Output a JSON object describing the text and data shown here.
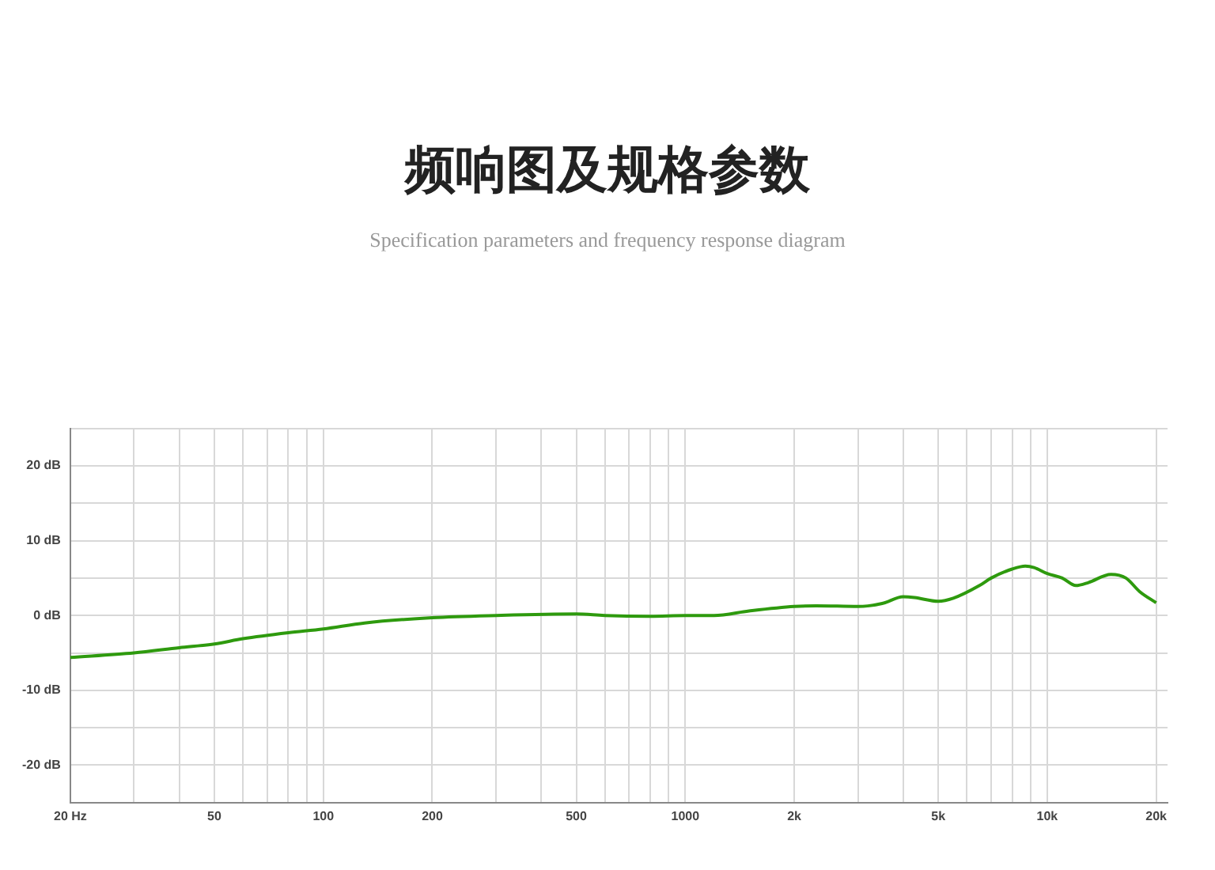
{
  "chart_data": {
    "type": "line",
    "title": "频响图及规格参数",
    "subtitle": "Specification parameters and frequency response diagram",
    "x": [
      20,
      30,
      40,
      50,
      60,
      80,
      100,
      130,
      200,
      300,
      500,
      600,
      800,
      1000,
      1200,
      1500,
      2000,
      2300,
      3000,
      3500,
      4000,
      4300,
      5000,
      5500,
      6500,
      7000,
      8000,
      8700,
      9200,
      10000,
      11000,
      12000,
      13000,
      15000,
      16500,
      18000,
      20000
    ],
    "series": [
      {
        "color": "#2e9a0e",
        "values": [
          -5.6,
          -5.0,
          -4.3,
          -3.8,
          -3.1,
          -2.3,
          -1.8,
          -1.0,
          -0.3,
          0,
          0.2,
          0,
          -0.1,
          0,
          0,
          0.6,
          1.2,
          1.3,
          1.2,
          1.6,
          2.5,
          2.4,
          1.9,
          2.3,
          4.0,
          5.0,
          6.2,
          6.6,
          6.4,
          5.6,
          5.0,
          4.0,
          4.4,
          5.5,
          5.0,
          3.2,
          1.7
        ]
      }
    ],
    "log": "x",
    "xlim": [
      20,
      21500
    ],
    "xticks": [
      {
        "value": 20,
        "label": "20 Hz"
      },
      {
        "value": 30,
        "label": null
      },
      {
        "value": 40,
        "label": null
      },
      50,
      {
        "value": 60,
        "label": null
      },
      {
        "value": 70,
        "label": null
      },
      {
        "value": 80,
        "label": null
      },
      {
        "value": 90,
        "label": null
      },
      100,
      200,
      {
        "value": 300,
        "label": null
      },
      {
        "value": 400,
        "label": null
      },
      500,
      {
        "value": 600,
        "label": null
      },
      {
        "value": 700,
        "label": null
      },
      {
        "value": 800,
        "label": null
      },
      {
        "value": 900,
        "label": null
      },
      1000,
      {
        "value": 2000,
        "label": "2k"
      },
      {
        "value": 3000,
        "label": null
      },
      {
        "value": 4000,
        "label": null
      },
      {
        "value": 5000,
        "label": "5k"
      },
      {
        "value": 6000,
        "label": null
      },
      {
        "value": 7000,
        "label": null
      },
      {
        "value": 8000,
        "label": null
      },
      {
        "value": 9000,
        "label": null
      },
      {
        "value": 10000,
        "label": "10k"
      },
      {
        "value": 20000,
        "label": "20k"
      }
    ],
    "ylim": [
      -25,
      25
    ],
    "yticks": [
      {
        "value": -25,
        "label": null
      },
      {
        "value": -20,
        "label": "-20 dB"
      },
      {
        "value": -15,
        "label": null
      },
      {
        "value": -10,
        "label": "-10 dB"
      },
      {
        "value": -5,
        "label": null
      },
      {
        "value": 0,
        "label": "0 dB"
      },
      {
        "value": 5,
        "label": null
      },
      {
        "value": 10,
        "label": "10 dB"
      },
      {
        "value": 15,
        "label": null
      },
      {
        "value": 20,
        "label": "20 dB"
      },
      {
        "value": 25,
        "label": null
      }
    ],
    "grid": true,
    "legend": false
  }
}
